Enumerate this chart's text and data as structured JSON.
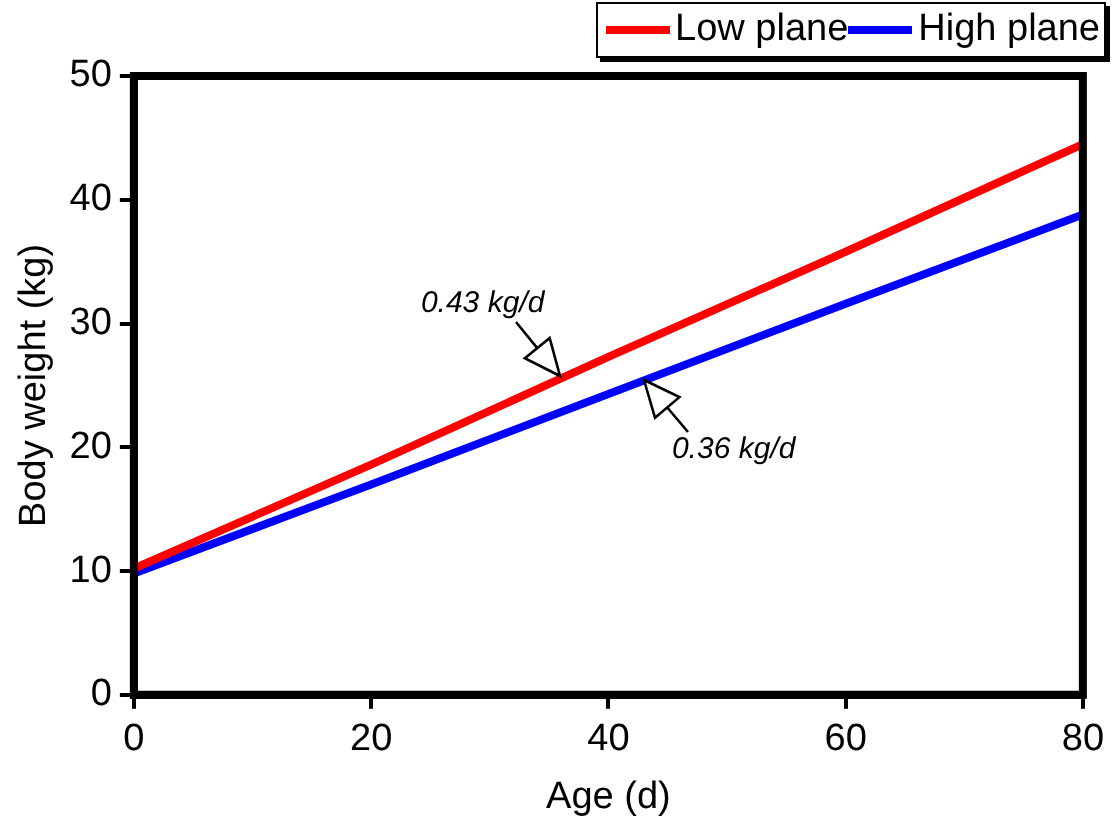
{
  "chart_data": {
    "type": "line",
    "xlabel": "Age (d)",
    "ylabel": "Body weight (kg)",
    "x": [
      0,
      20,
      40,
      60,
      80
    ],
    "series": [
      {
        "name": "Low plane",
        "color": "#ff0000",
        "values": [
          10.2,
          18.6,
          27.3,
          35.8,
          44.5
        ]
      },
      {
        "name": "High plane",
        "color": "#0000ff",
        "values": [
          9.8,
          17.0,
          24.3,
          31.6,
          38.8
        ]
      }
    ],
    "xlim": [
      0,
      80
    ],
    "xticks": [
      0,
      20,
      40,
      60,
      80
    ],
    "ylim": [
      0,
      50
    ],
    "yticks": [
      0,
      10,
      20,
      30,
      40,
      50
    ],
    "grid": false,
    "legend": "top right",
    "marker": "none",
    "line_style": "solid",
    "annotations": [
      {
        "text": "0.43 kg/d",
        "x": 36,
        "y": 25.8
      },
      {
        "text": "0.36 kg/d",
        "x": 43,
        "y": 25.4
      }
    ]
  }
}
